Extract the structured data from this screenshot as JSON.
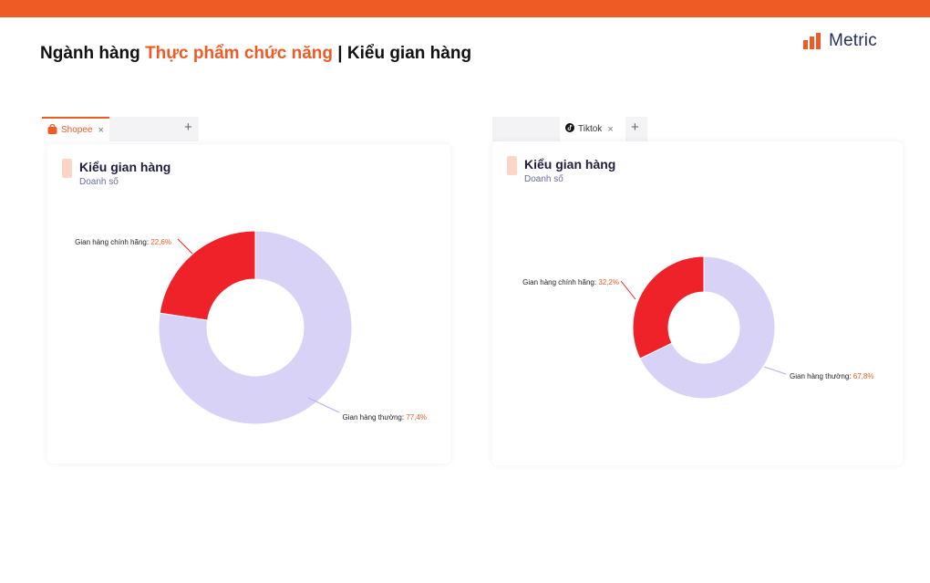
{
  "header": {
    "title_prefix": "Ngành hàng ",
    "title_highlight": "Thực phẩm chức năng",
    "title_suffix": " | Kiểu gian hàng",
    "brand": "Metric",
    "accent_color": "#ee5b24",
    "logo_icon": "bar-chart-icon"
  },
  "panels": [
    {
      "tab": {
        "label": "Shopee",
        "icon": "shopee-bag-icon",
        "close": "×",
        "add": "+"
      },
      "card": {
        "title": "Kiểu gian hàng",
        "subtitle": "Doanh số"
      }
    },
    {
      "tab": {
        "label": "Tiktok",
        "icon": "tiktok-note-icon",
        "close": "×",
        "add": "+"
      },
      "card": {
        "title": "Kiểu gian hàng",
        "subtitle": "Doanh số"
      }
    }
  ],
  "chart_data": [
    {
      "type": "pie",
      "title": "Kiểu gian hàng",
      "subtitle": "Doanh số",
      "slices": [
        {
          "label": "Gian hàng thường",
          "value": 77.4,
          "value_text": "77,4%",
          "color": "#d8d2f7"
        },
        {
          "label": "Gian hàng chính hãng",
          "value": 22.6,
          "value_text": "22,6%",
          "color": "#ee2228"
        }
      ]
    },
    {
      "type": "pie",
      "title": "Kiểu gian hàng",
      "subtitle": "Doanh số",
      "slices": [
        {
          "label": "Gian hàng thường",
          "value": 67.8,
          "value_text": "67,8%",
          "color": "#d8d2f7"
        },
        {
          "label": "Gian hàng chính hãng",
          "value": 32.2,
          "value_text": "32,2%",
          "color": "#ee2228"
        }
      ]
    }
  ]
}
